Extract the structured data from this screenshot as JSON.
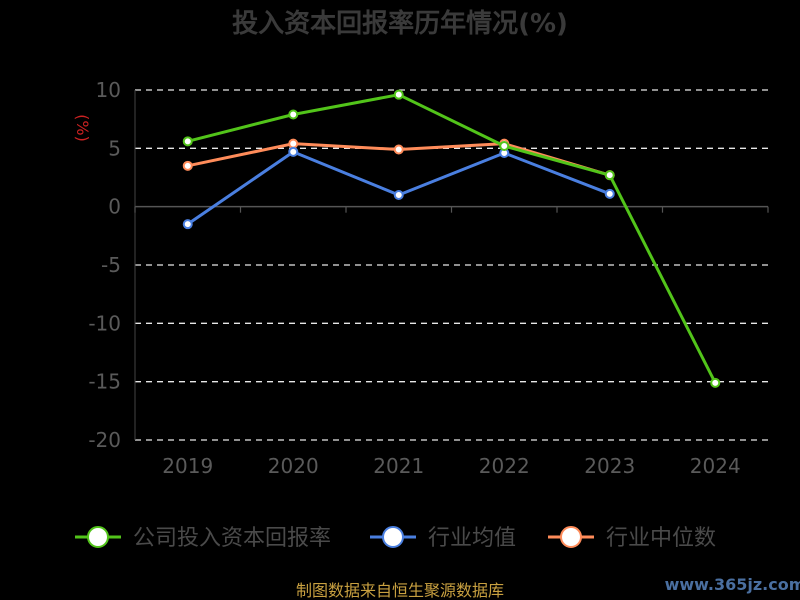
{
  "chart_data": {
    "type": "line",
    "title": "投入资本回报率历年情况(%)",
    "ylabel": "(%)",
    "categories": [
      "2019",
      "2020",
      "2021",
      "2022",
      "2023",
      "2024"
    ],
    "ylim": [
      -20,
      10
    ],
    "yticks": [
      10,
      5,
      0,
      -5,
      -10,
      -15,
      -20
    ],
    "grid": true,
    "legend_position": "bottom",
    "series": [
      {
        "name": "公司投入资本回报率",
        "color": "#52c41a",
        "values": [
          5.6,
          7.9,
          9.6,
          5.2,
          2.7,
          -15.1
        ]
      },
      {
        "name": "行业均值",
        "color": "#4a7fe0",
        "values": [
          -1.5,
          4.7,
          1.0,
          4.6,
          1.1,
          null
        ]
      },
      {
        "name": "行业中位数",
        "color": "#ff8c5a",
        "values": [
          3.5,
          5.4,
          4.9,
          5.4,
          2.7,
          null
        ]
      }
    ]
  },
  "footer": {
    "source": "制图数据来自恒生聚源数据库",
    "watermark": "www.365jz.com"
  }
}
